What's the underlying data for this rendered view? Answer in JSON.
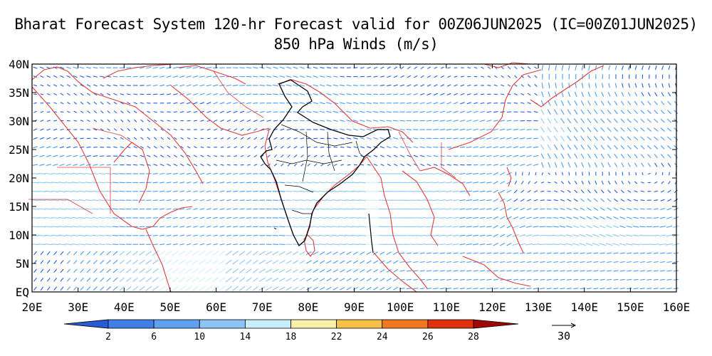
{
  "title": "Bharat Forecast System 120-hr Forecast valid for 00Z06JUN2025 (IC=00Z01JUN2025)",
  "subtitle": "850 hPa Winds (m/s)",
  "map": {
    "lat_ticks": [
      "40N",
      "35N",
      "30N",
      "25N",
      "20N",
      "15N",
      "10N",
      "5N",
      "EQ"
    ],
    "lon_ticks": [
      "20E",
      "30E",
      "40E",
      "50E",
      "60E",
      "70E",
      "80E",
      "90E",
      "100E",
      "110E",
      "120E",
      "130E",
      "140E",
      "150E",
      "160E"
    ],
    "lat_range": [
      0,
      40
    ],
    "lon_range": [
      20,
      160
    ]
  },
  "colorbar": {
    "labels": [
      "2",
      "6",
      "10",
      "14",
      "18",
      "22",
      "24",
      "26",
      "28"
    ],
    "colors": [
      "#2a5bd6",
      "#3f7fe6",
      "#5fa0ef",
      "#8cc4f5",
      "#c8eefb",
      "#f8f0a8",
      "#f8c048",
      "#f07820",
      "#e03010",
      "#a00808"
    ]
  },
  "reference_vector": {
    "label": "30"
  },
  "wind_colors": {
    "weak": "#1e60e0",
    "moderate": "#4a9cf0",
    "strong": "#8cc8f4",
    "very_strong": "#cdeefa",
    "jet": "#f5dc80"
  }
}
